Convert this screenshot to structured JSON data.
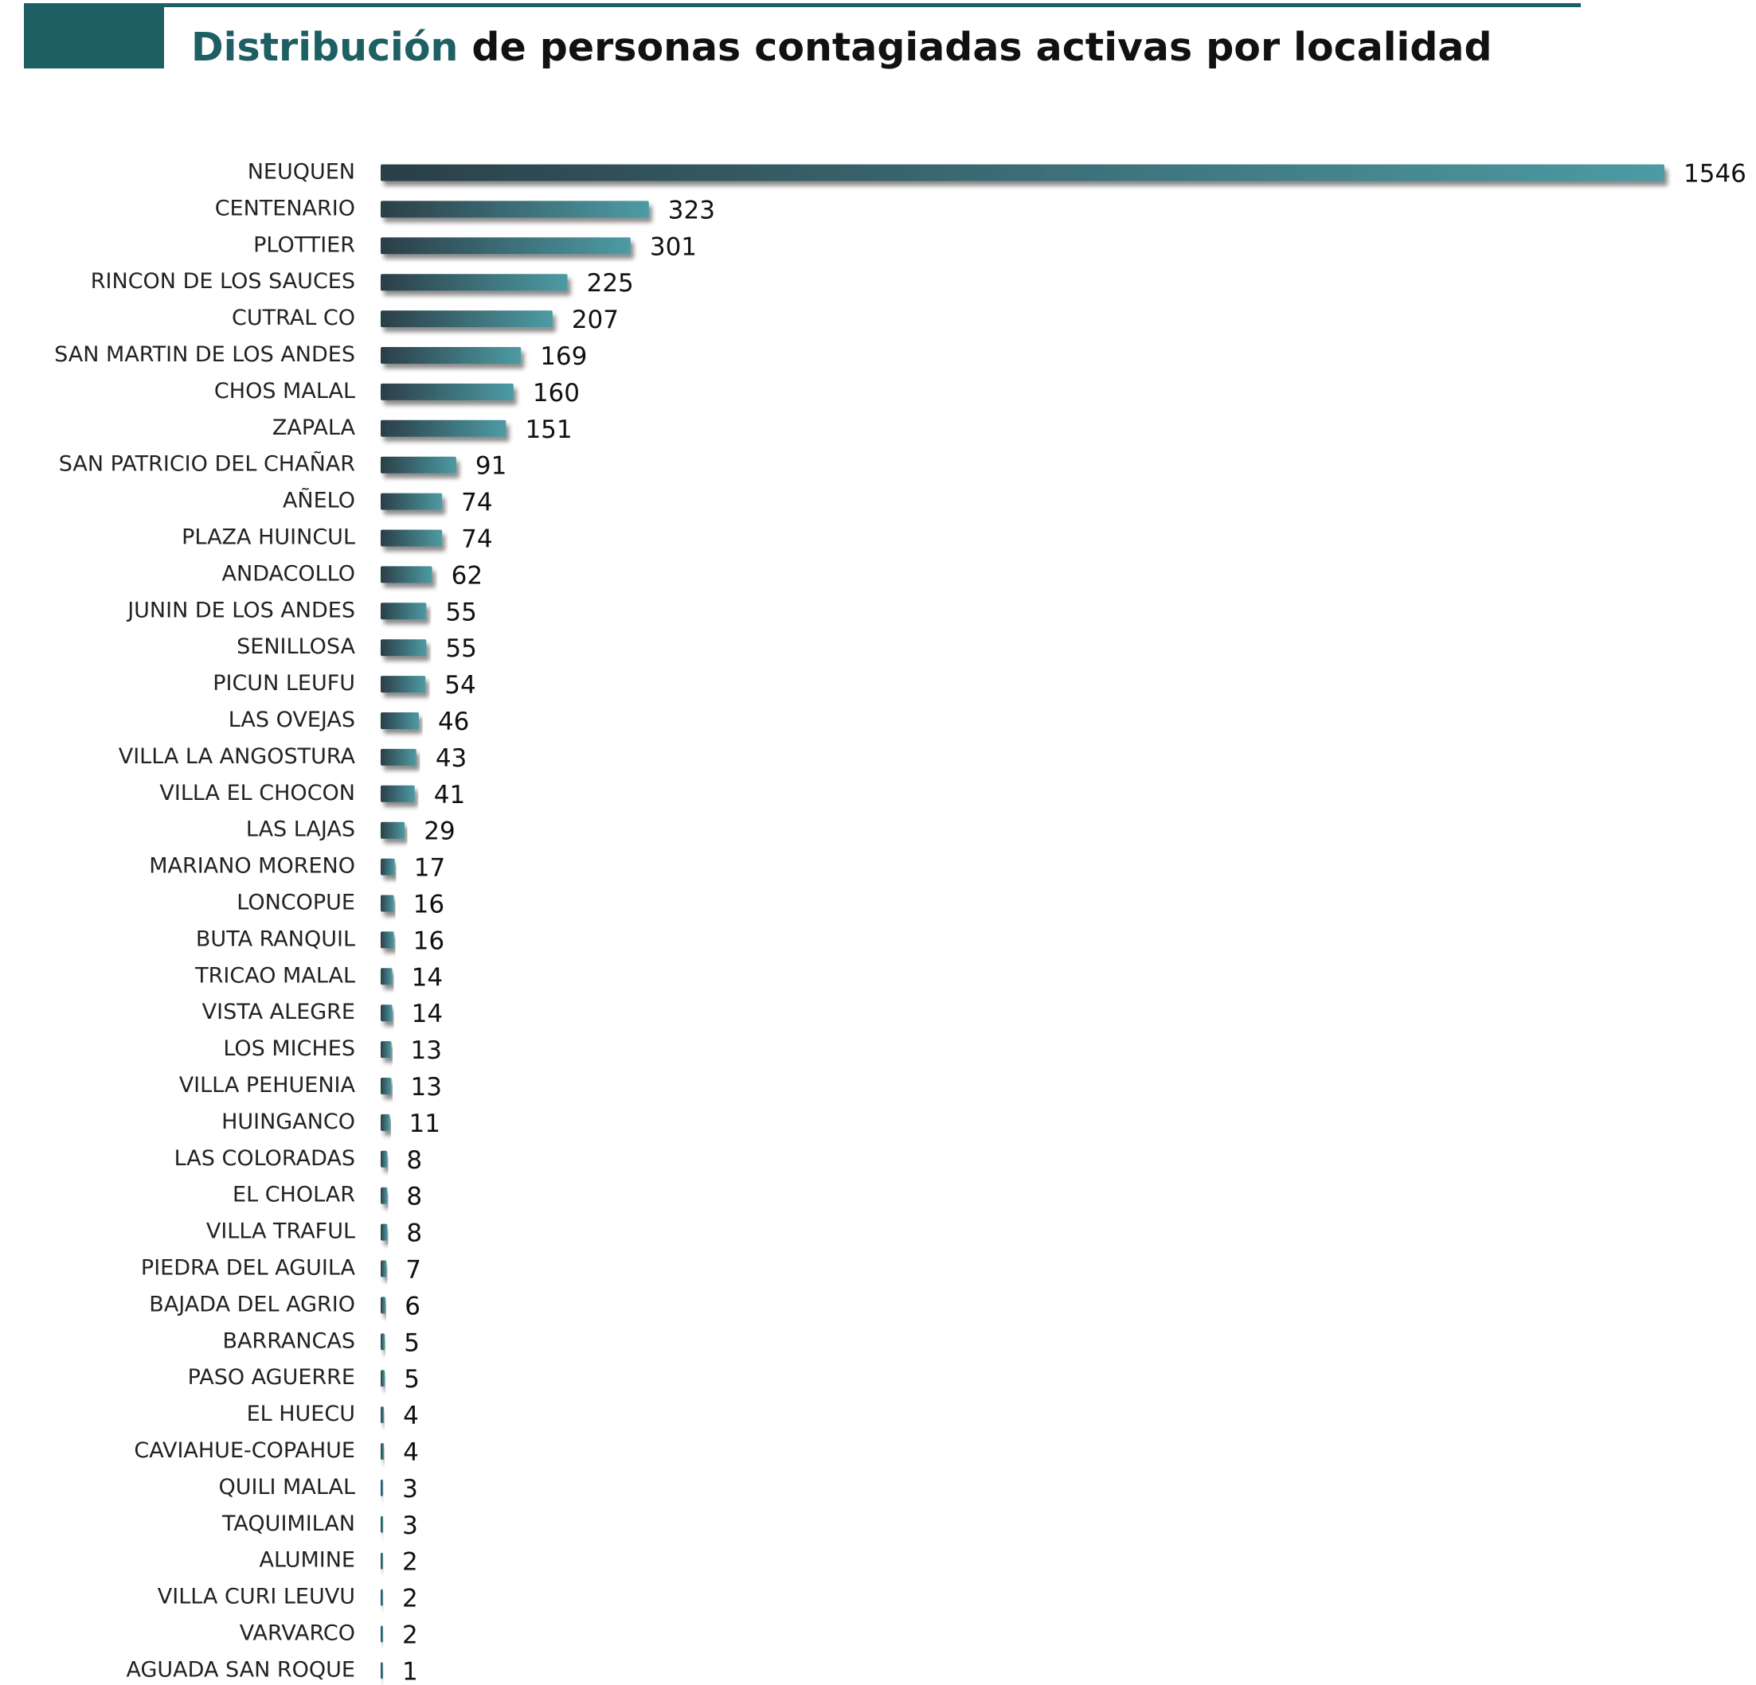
{
  "header": {
    "title_highlight": "Distribución",
    "title_rest": " de personas contagiadas activas por localidad"
  },
  "colors": {
    "header_teal": "#1d5f62",
    "bar_dark": "#2b3f48",
    "bar_light": "#4d9ba4",
    "label_text": "#222222"
  },
  "chart_data": {
    "type": "bar",
    "orientation": "horizontal",
    "title": "Distribución de personas contagiadas activas por localidad",
    "xlabel": "",
    "ylabel": "",
    "grid": false,
    "legend": "none",
    "xlim": [
      0,
      1546
    ],
    "categories": [
      "NEUQUEN",
      "CENTENARIO",
      "PLOTTIER",
      "RINCON DE LOS SAUCES",
      "CUTRAL CO",
      "SAN MARTIN DE LOS ANDES",
      "CHOS MALAL",
      "ZAPALA",
      "SAN PATRICIO DEL CHAÑAR",
      "AÑELO",
      "PLAZA HUINCUL",
      "ANDACOLLO",
      "JUNIN DE LOS ANDES",
      "SENILLOSA",
      "PICUN LEUFU",
      "LAS OVEJAS",
      "VILLA LA ANGOSTURA",
      "VILLA EL CHOCON",
      "LAS LAJAS",
      "MARIANO MORENO",
      "LONCOPUE",
      "BUTA RANQUIL",
      "TRICAO MALAL",
      "VISTA ALEGRE",
      "LOS MICHES",
      "VILLA PEHUENIA",
      "HUINGANCO",
      "LAS COLORADAS",
      "EL CHOLAR",
      "VILLA TRAFUL",
      "PIEDRA DEL AGUILA",
      "BAJADA DEL AGRIO",
      "BARRANCAS",
      "PASO AGUERRE",
      "EL HUECU",
      "CAVIAHUE-COPAHUE",
      "QUILI MALAL",
      "TAQUIMILAN",
      "ALUMINE",
      "VILLA CURI LEUVU",
      "VARVARCO",
      "AGUADA SAN ROQUE"
    ],
    "values": [
      1546,
      323,
      301,
      225,
      207,
      169,
      160,
      151,
      91,
      74,
      74,
      62,
      55,
      55,
      54,
      46,
      43,
      41,
      29,
      17,
      16,
      16,
      14,
      14,
      13,
      13,
      11,
      8,
      8,
      8,
      7,
      6,
      5,
      5,
      4,
      4,
      3,
      3,
      2,
      2,
      2,
      1
    ]
  }
}
